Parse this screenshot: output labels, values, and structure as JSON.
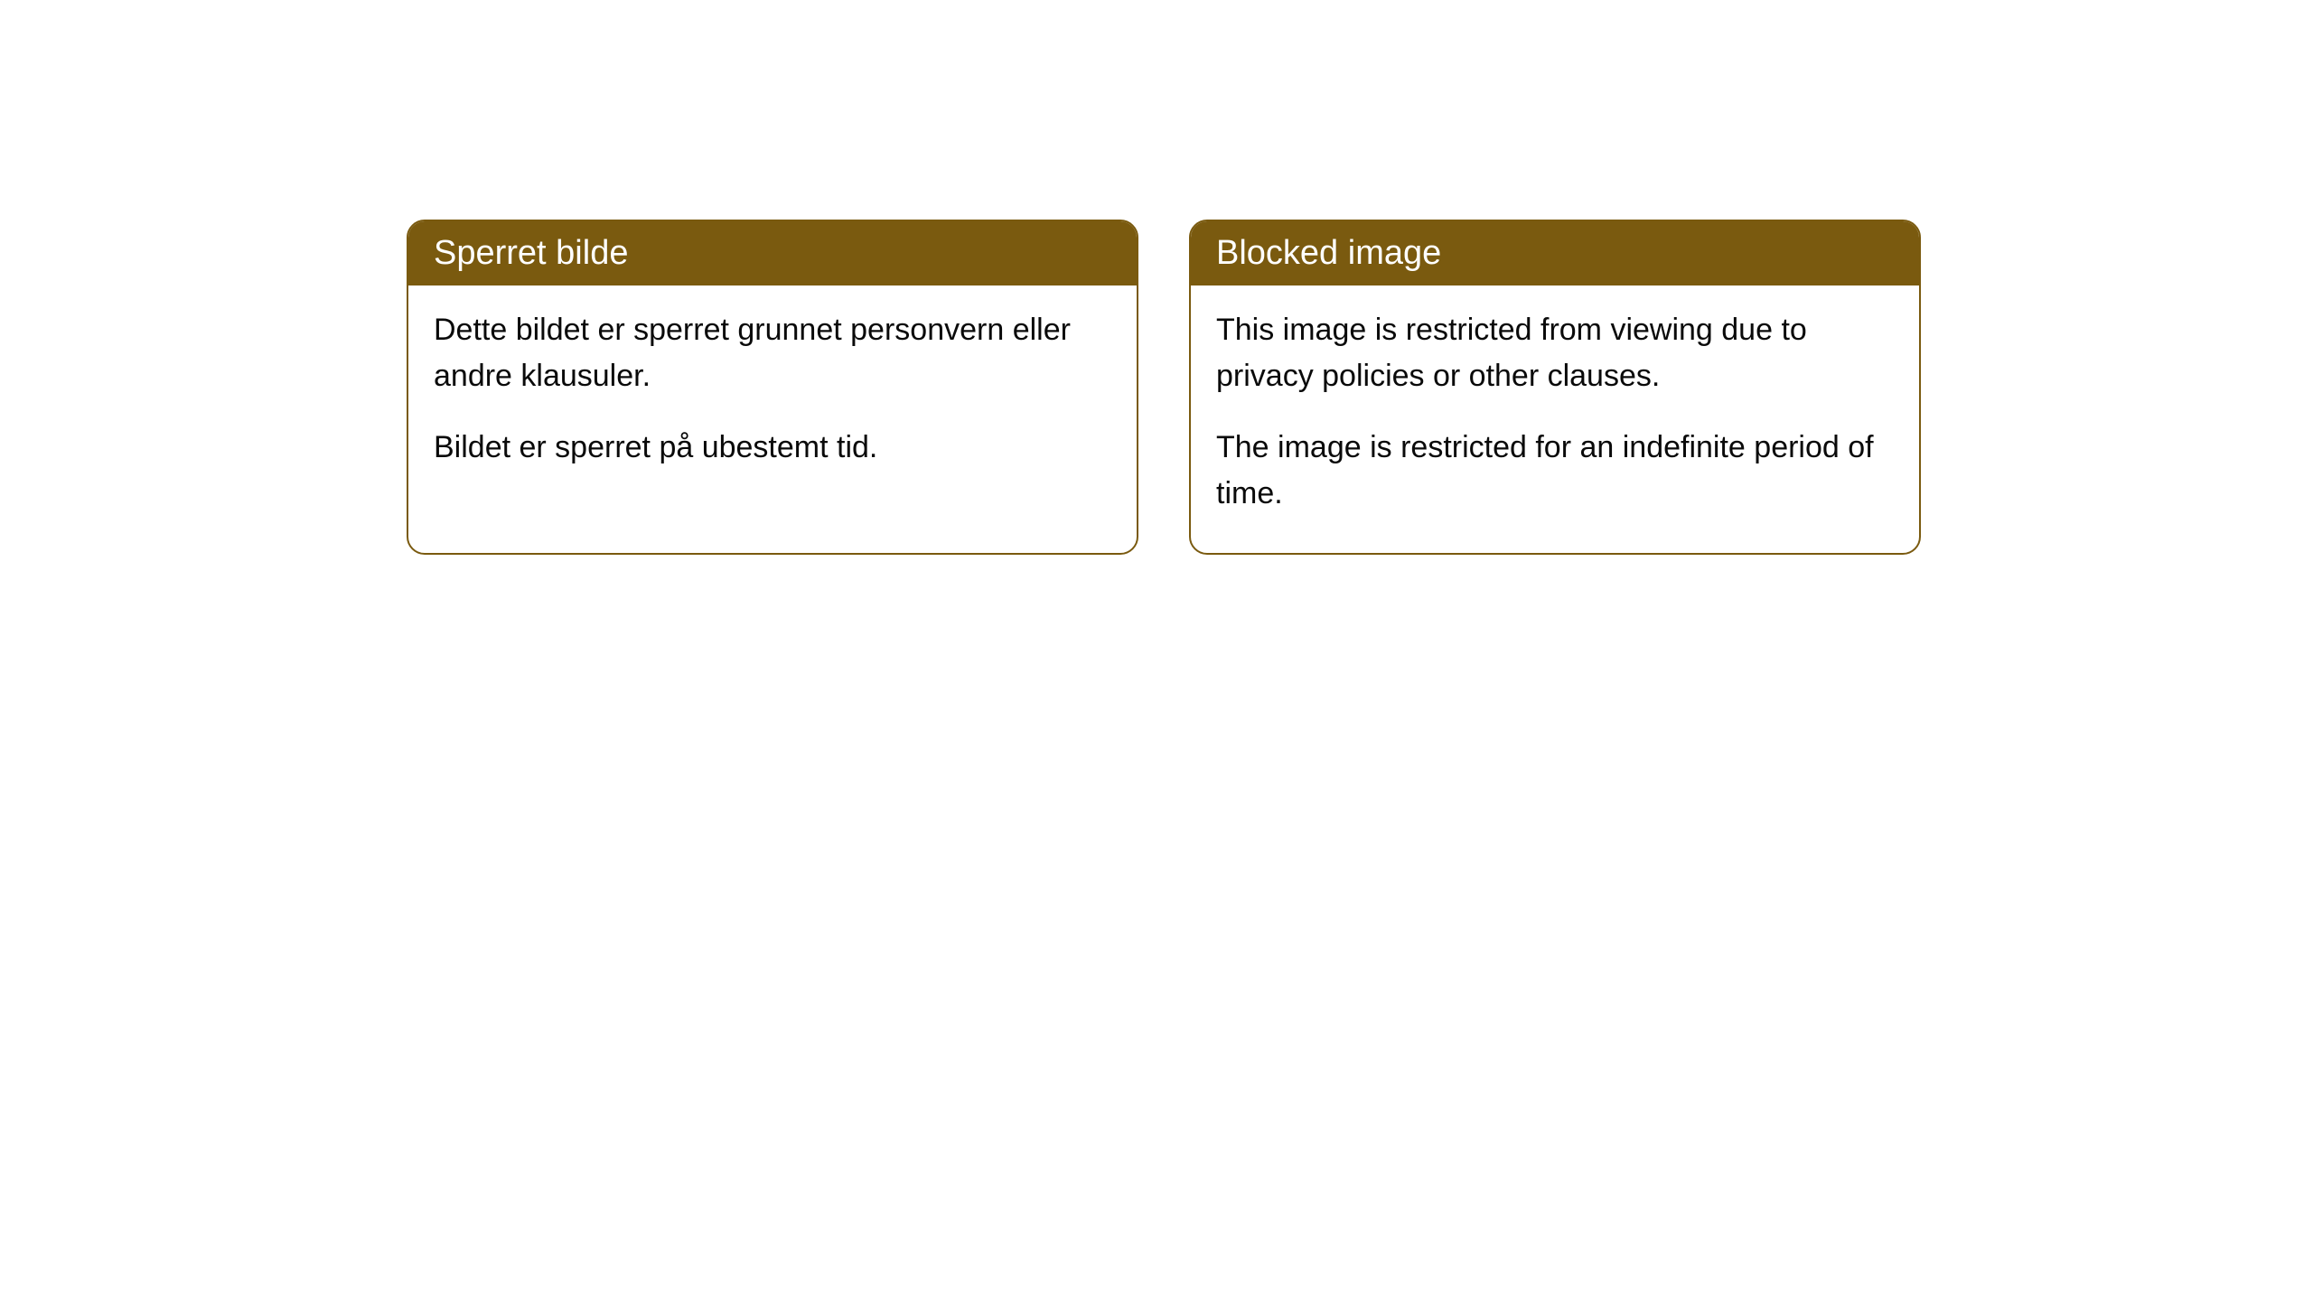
{
  "cards": [
    {
      "title": "Sperret bilde",
      "paragraph1": "Dette bildet er sperret grunnet personvern eller andre klausuler.",
      "paragraph2": "Bildet er sperret på ubestemt tid."
    },
    {
      "title": "Blocked image",
      "paragraph1": "This image is restricted from viewing due to privacy policies or other clauses.",
      "paragraph2": "The image is restricted for an indefinite period of time."
    }
  ],
  "style": {
    "header_bg_color": "#7a5a0f",
    "header_text_color": "#ffffff",
    "border_color": "#7a5a0f",
    "body_bg_color": "#ffffff",
    "body_text_color": "#0a0a0a",
    "border_radius": 20,
    "header_fontsize": 38,
    "body_fontsize": 34
  }
}
